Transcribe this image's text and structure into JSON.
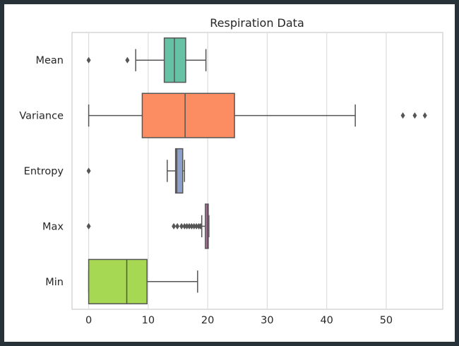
{
  "chart_data": {
    "type": "boxplot",
    "orientation": "horizontal",
    "title": "Respiration Data",
    "xlabel": "",
    "ylabel": "",
    "xlim": [
      -2.8,
      59.5
    ],
    "xticks": [
      0,
      10,
      20,
      30,
      40,
      50
    ],
    "xtick_labels": [
      "0",
      "10",
      "20",
      "30",
      "40",
      "50"
    ],
    "grid": "vertical",
    "categories": [
      "Mean",
      "Variance",
      "Entropy",
      "Max",
      "Min"
    ],
    "colors": [
      "#66c2a5",
      "#fc8d62",
      "#8da0cb",
      "#e78ac3",
      "#a6d854"
    ],
    "boxes": [
      {
        "name": "Mean",
        "whisker_low": 7.9,
        "q1": 12.7,
        "median": 14.4,
        "q3": 16.3,
        "whisker_high": 19.7,
        "outliers": [
          0.0,
          6.5
        ]
      },
      {
        "name": "Variance",
        "whisker_low": 0.0,
        "q1": 9.0,
        "median": 16.2,
        "q3": 24.5,
        "whisker_high": 44.8,
        "outliers": [
          52.8,
          54.8,
          56.5
        ]
      },
      {
        "name": "Entropy",
        "whisker_low": 13.2,
        "q1": 14.6,
        "median": 14.8,
        "q3": 15.8,
        "whisker_high": 16.1,
        "outliers": [
          0.0
        ]
      },
      {
        "name": "Max",
        "whisker_low": 19.0,
        "q1": 19.6,
        "median": 19.9,
        "q3": 20.1,
        "whisker_high": 20.2,
        "outliers": [
          0.0,
          14.3,
          14.9,
          15.6,
          16.1,
          16.5,
          16.9,
          17.3,
          17.7,
          18.1,
          18.5,
          18.8
        ]
      },
      {
        "name": "Min",
        "whisker_low": 0.0,
        "q1": 0.0,
        "median": 6.4,
        "q3": 9.8,
        "whisker_high": 18.3,
        "outliers": []
      }
    ]
  }
}
